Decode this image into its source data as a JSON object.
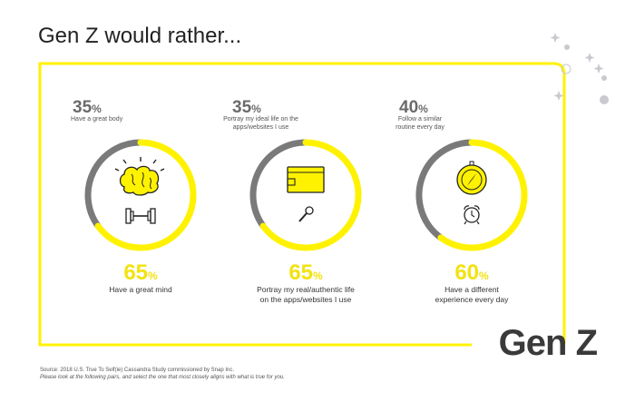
{
  "title": "Gen Z would rather...",
  "brand": "Gen Z",
  "source_line1": "Source: 2018 U.S. True To Self(ie) Cassandra Study commissioned by Snap Inc.",
  "source_line2": "Please look at the following pairs, and select the one that most closely aligns with what is true for you.",
  "colors": {
    "yellow": "#fff200",
    "gray": "#7a7a7a",
    "dark": "#3a3a3a"
  },
  "icons": {
    "pair1": [
      "brain-icon",
      "dumbbell-icon"
    ],
    "pair2": [
      "wallet-icon",
      "microphone-icon"
    ],
    "pair3": [
      "compass-icon",
      "alarm-clock-icon"
    ]
  },
  "chart_data": {
    "type": "pie",
    "title": "Gen Z would rather...",
    "pairs": [
      {
        "top_value": 35,
        "top_pct": "35",
        "top_label": "Have a great body",
        "bottom_value": 65,
        "bottom_pct": "65",
        "bottom_label": "Have a great mind"
      },
      {
        "top_value": 35,
        "top_pct": "35",
        "top_label": "Portray my ideal life on the apps/websites I use",
        "bottom_value": 65,
        "bottom_pct": "65",
        "bottom_label": "Portray my real/authentic life on the apps/websites I use"
      },
      {
        "top_value": 40,
        "top_pct": "40",
        "top_label": "Follow a similar routine every day",
        "bottom_value": 60,
        "bottom_pct": "60",
        "bottom_label": "Have a different experience every day"
      }
    ]
  }
}
